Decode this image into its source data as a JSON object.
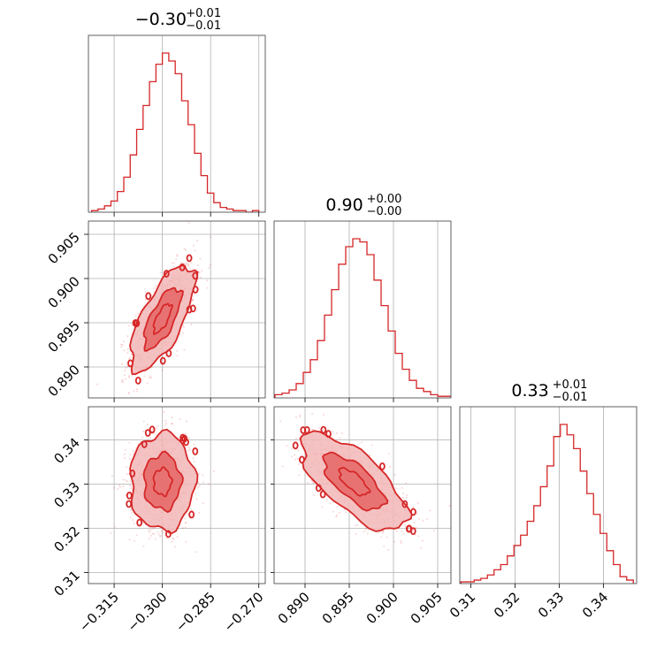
{
  "chart_data": {
    "type": "corner",
    "color": "#d62728",
    "parameters": [
      {
        "title": {
          "value": "−0.30",
          "upper": "+0.01",
          "lower": "−0.01"
        },
        "median": -0.3,
        "range": [
          -0.323,
          -0.268
        ],
        "ticks": [
          -0.315,
          -0.3,
          -0.285,
          -0.27
        ],
        "tick_labels": [
          "−0.315",
          "−0.300",
          "−0.285",
          "−0.270"
        ],
        "hist": {
          "centers": [
            -0.321,
            -0.319,
            -0.317,
            -0.315,
            -0.313,
            -0.311,
            -0.309,
            -0.307,
            -0.305,
            -0.303,
            -0.301,
            -0.299,
            -0.297,
            -0.295,
            -0.293,
            -0.291,
            -0.289,
            -0.287,
            -0.285,
            -0.283,
            -0.281,
            -0.279,
            -0.277,
            -0.275,
            -0.273,
            -0.271
          ],
          "heights": [
            1,
            2,
            4,
            7,
            13,
            22,
            36,
            52,
            67,
            82,
            93,
            100,
            95,
            87,
            70,
            55,
            37,
            23,
            12,
            6,
            3,
            2,
            1,
            1,
            0,
            1
          ]
        }
      },
      {
        "title": {
          "value": "0.90",
          "upper": "+0.00",
          "lower": "−0.00"
        },
        "median": 0.8955,
        "range": [
          0.8865,
          0.9065
        ],
        "ticks": [
          0.89,
          0.895,
          0.9,
          0.905
        ],
        "tick_labels": [
          "0.890",
          "0.895",
          "0.900",
          "0.905"
        ],
        "hist": {
          "centers": [
            0.887,
            0.8878,
            0.8886,
            0.8894,
            0.8902,
            0.891,
            0.8918,
            0.8926,
            0.8934,
            0.8942,
            0.895,
            0.8958,
            0.8966,
            0.8974,
            0.8982,
            0.899,
            0.8998,
            0.9006,
            0.9014,
            0.9022,
            0.903,
            0.9038,
            0.9046,
            0.9054,
            0.9062
          ],
          "heights": [
            2,
            3,
            5,
            9,
            16,
            24,
            36,
            52,
            68,
            84,
            95,
            100,
            98,
            90,
            74,
            58,
            42,
            28,
            18,
            11,
            6,
            4,
            2,
            1,
            1
          ]
        }
      },
      {
        "title": {
          "value": "0.33",
          "upper": "+0.01",
          "lower": "−0.01"
        },
        "median": 0.3305,
        "range": [
          0.3075,
          0.3475
        ],
        "ticks": [
          0.31,
          0.32,
          0.33,
          0.34
        ],
        "tick_labels": [
          "0.31",
          "0.32",
          "0.33",
          "0.34"
        ],
        "hist": {
          "centers": [
            0.3085,
            0.31,
            0.3115,
            0.313,
            0.3145,
            0.316,
            0.3175,
            0.319,
            0.3205,
            0.322,
            0.3235,
            0.325,
            0.3265,
            0.328,
            0.3295,
            0.331,
            0.3325,
            0.334,
            0.3355,
            0.337,
            0.3385,
            0.34,
            0.3415,
            0.343,
            0.3445,
            0.346
          ],
          "heights": [
            1,
            1,
            2,
            3,
            5,
            8,
            11,
            16,
            22,
            28,
            36,
            45,
            56,
            68,
            85,
            92,
            86,
            78,
            65,
            52,
            40,
            29,
            19,
            11,
            4,
            2
          ]
        }
      }
    ],
    "pairs": [
      {
        "x_param": 0,
        "y_param": 1,
        "center": [
          -0.3,
          0.8955
        ],
        "sigma": [
          0.005,
          0.003
        ],
        "correlation": 0.7,
        "y_ticks": [
          0.89,
          0.895,
          0.9,
          0.905
        ],
        "y_tick_labels": [
          "0.890",
          "0.895",
          "0.900",
          "0.905"
        ]
      },
      {
        "x_param": 0,
        "y_param": 2,
        "center": [
          -0.3,
          0.3305
        ],
        "sigma": [
          0.005,
          0.0055
        ],
        "correlation": 0.0,
        "y_ticks": [
          0.31,
          0.32,
          0.33,
          0.34
        ],
        "y_tick_labels": [
          "0.31",
          "0.32",
          "0.33",
          "0.34"
        ]
      },
      {
        "x_param": 1,
        "y_param": 2,
        "center": [
          0.8955,
          0.3305
        ],
        "sigma": [
          0.003,
          0.0055
        ],
        "correlation": -0.7,
        "y_ticks": [
          0.31,
          0.32,
          0.33,
          0.34
        ],
        "y_tick_labels": [
          "0.31",
          "0.32",
          "0.33",
          "0.34"
        ]
      }
    ],
    "contour_levels_sigma": [
      1,
      2
    ],
    "grid": true,
    "xlabel": "",
    "ylabel": ""
  }
}
